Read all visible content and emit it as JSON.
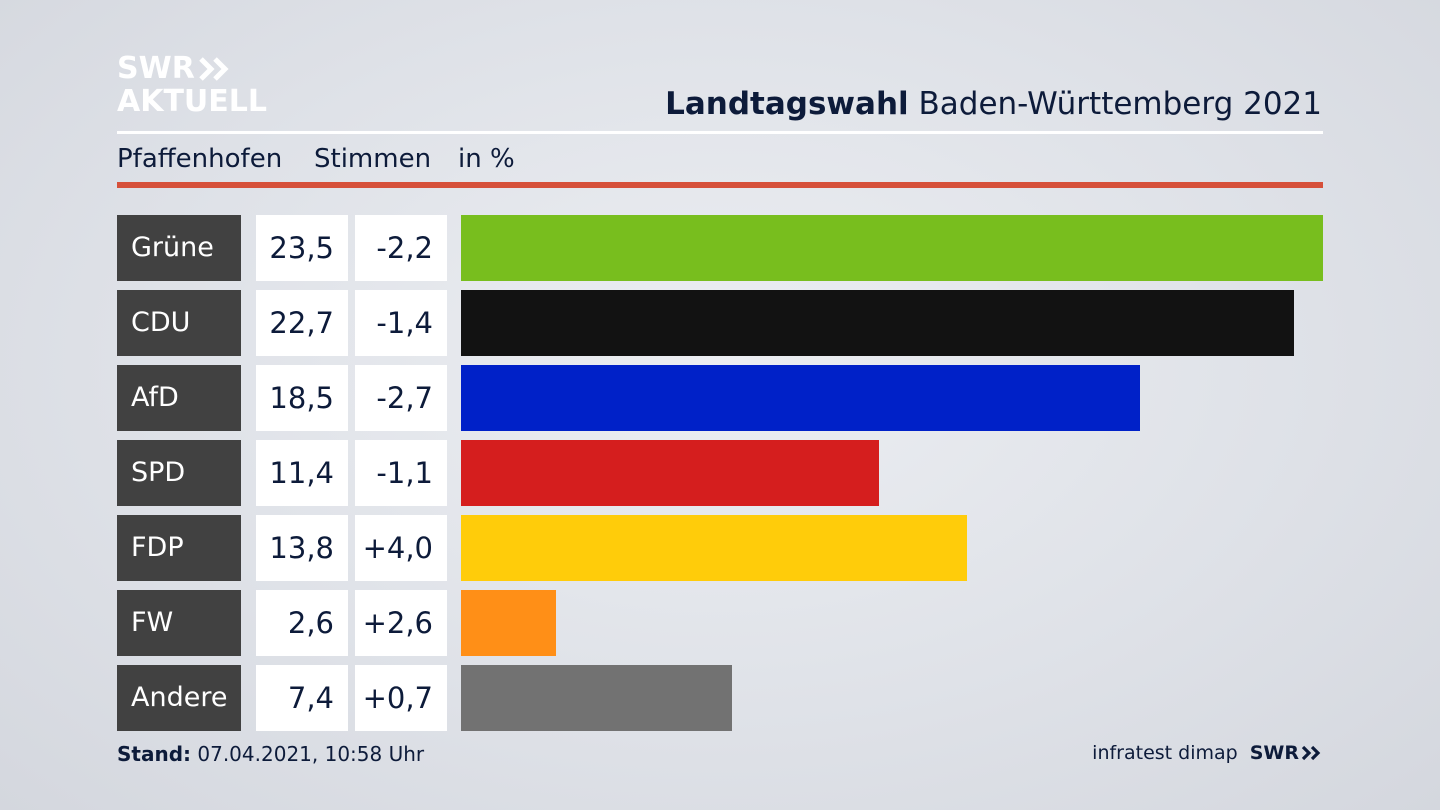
{
  "brand": {
    "logo_line1": "SWR",
    "logo_line2": "AKTUELL",
    "footer_logo": "SWR",
    "source": "infratest dimap"
  },
  "header": {
    "title_bold": "Landtagswahl",
    "title_rest": "Baden-Württemberg 2021"
  },
  "subheader": {
    "region": "Pfaffenhofen",
    "metric": "Stimmen",
    "unit": "in %"
  },
  "footer": {
    "stand_label": "Stand:",
    "stand_value": "07.04.2021, 10:58 Uhr"
  },
  "chart_data": {
    "type": "bar",
    "orientation": "horizontal",
    "title": "Landtagswahl Baden-Württemberg 2021",
    "subtitle": "Pfaffenhofen Stimmen in %",
    "categories": [
      "Grüne",
      "CDU",
      "AfD",
      "SPD",
      "FDP",
      "FW",
      "Andere"
    ],
    "values": [
      23.5,
      22.7,
      18.5,
      11.4,
      13.8,
      2.6,
      7.4
    ],
    "value_labels": [
      "23,5",
      "22,7",
      "18,5",
      "11,4",
      "13,8",
      "2,6",
      "7,4"
    ],
    "diff_labels": [
      "-2,2",
      "-1,4",
      "-2,7",
      "-1,1",
      "+4,0",
      "+2,6",
      "+0,7"
    ],
    "colors": [
      "#78be1e",
      "#121212",
      "#0021c8",
      "#d51e1e",
      "#ffcc0a",
      "#ff8f17",
      "#727272"
    ],
    "xlim": [
      0,
      23.5
    ]
  }
}
